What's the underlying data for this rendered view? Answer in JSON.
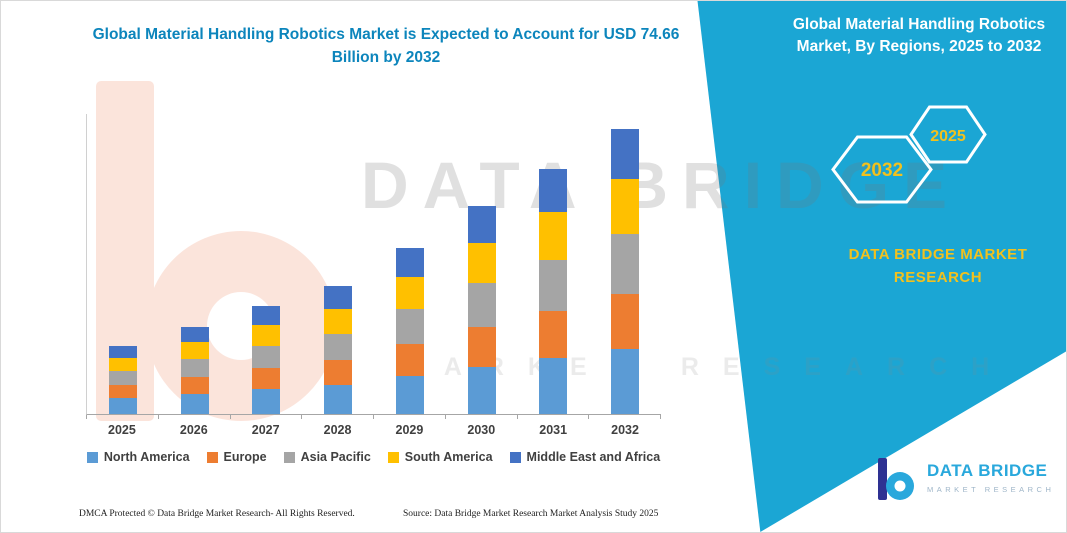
{
  "header": {
    "left_title": "Global Material Handling Robotics Market is Expected to Account for USD 74.66 Billion by 2032",
    "right_title": "Global Material Handling Robotics Market, By Regions, 2025 to 2032"
  },
  "side_panel": {
    "hexagon_back_label": "2032",
    "hexagon_front_label": "2025",
    "brand_line1": "DATA BRIDGE MARKET",
    "brand_line2": "RESEARCH",
    "panel_color": "#1BA6D4",
    "accent_yellow": "#F2C11E"
  },
  "watermark": {
    "line1": "DATA BRIDGE",
    "line2": "MARKET RESEARCH"
  },
  "chart_data": {
    "type": "bar",
    "stacked": true,
    "title": "Global Material Handling Robotics Market, By Regions, 2025 to 2032",
    "unit": "USD Billion",
    "categories": [
      "2025",
      "2026",
      "2027",
      "2028",
      "2029",
      "2030",
      "2031",
      "2032"
    ],
    "series": [
      {
        "name": "North America",
        "color": "#5B9BD5",
        "values": [
          4.1,
          5.2,
          6.5,
          7.6,
          9.9,
          12.4,
          14.6,
          17.0
        ]
      },
      {
        "name": "Europe",
        "color": "#ED7D31",
        "values": [
          3.4,
          4.4,
          5.5,
          6.5,
          8.4,
          10.5,
          12.4,
          14.4
        ]
      },
      {
        "name": "Asia Pacific",
        "color": "#A5A5A5",
        "values": [
          3.7,
          4.8,
          5.9,
          7.0,
          9.1,
          11.4,
          13.5,
          15.7
        ]
      },
      {
        "name": "South America",
        "color": "#FFC000",
        "values": [
          3.4,
          4.4,
          5.5,
          6.5,
          8.4,
          10.5,
          12.4,
          14.4
        ]
      },
      {
        "name": "Middle East and Africa",
        "color": "#4472C4",
        "values": [
          3.2,
          4.1,
          5.0,
          5.9,
          7.7,
          9.6,
          11.3,
          13.16
        ]
      }
    ],
    "totals_note": "2032 total = 74.66",
    "ylim": [
      0,
      80
    ],
    "grid": false,
    "legend_position": "bottom",
    "xlabel": "",
    "ylabel": ""
  },
  "footer": {
    "dmca": "DMCA Protected © Data Bridge Market Research-  All Rights Reserved.",
    "source": "Source: Data Bridge Market Research  Market Analysis Study 2025"
  },
  "logo": {
    "name": "DATA BRIDGE",
    "subtext": "MARKET RESEARCH"
  }
}
